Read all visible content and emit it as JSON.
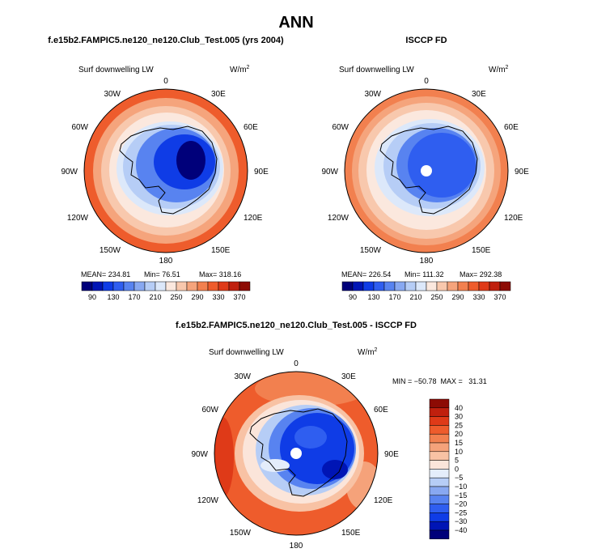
{
  "title": "ANN",
  "colors": {
    "level_colors": [
      "#00007a",
      "#0015b5",
      "#0f3ce6",
      "#2f5ef0",
      "#5883f0",
      "#88a8f1",
      "#b6cdf6",
      "#dce8fa",
      "#fbe8de",
      "#f8c8ad",
      "#f5a47c",
      "#f2804f",
      "#ee5c2c",
      "#df3a18",
      "#c0200e",
      "#8d0b04"
    ],
    "diff_colors": [
      "#00007a",
      "#0015b5",
      "#0f3ce6",
      "#2f5ef0",
      "#5883f0",
      "#88a8f1",
      "#b6cdf6",
      "#e4edfb",
      "#fbe5da",
      "#f8c2a4",
      "#f5a27a",
      "#f2804f",
      "#ee5c2c",
      "#df3a18",
      "#c0200e",
      "#8d0b04"
    ],
    "land_outline": "#000000",
    "pole_hole": "#ffffff"
  },
  "lon_labels": {
    "lon_0": "0",
    "lon_30e": "30E",
    "lon_60e": "60E",
    "lon_90e": "90E",
    "lon_120e": "120E",
    "lon_150e": "150E",
    "lon_180": "180",
    "lon_150w": "150W",
    "lon_120w": "120W",
    "lon_90w": "90W",
    "lon_60w": "60W",
    "lon_30w": "30W"
  },
  "panels": {
    "model": {
      "case_title": "f.e15b2.FAMPIC5.ne120_ne120.Club_Test.005 (yrs 2004)",
      "field_label": "Surf downwelling LW",
      "units": "W/m",
      "units_exp": "2",
      "mean_label": "MEAN= 234.81",
      "min_label": "Min=   76.51",
      "max_label": "Max= 318.16",
      "field_stats": {
        "mean": 234.81,
        "min": 76.51,
        "max": 318.16
      }
    },
    "obs": {
      "case_title": "ISCCP FD",
      "field_label": "Surf downwelling LW",
      "units": "W/m",
      "units_exp": "2",
      "mean_label": "MEAN= 226.54",
      "min_label": "Min= 111.32",
      "max_label": "Max= 292.38",
      "field_stats": {
        "mean": 226.54,
        "min": 111.32,
        "max": 292.38
      }
    },
    "diff": {
      "case_title": "f.e15b2.FAMPIC5.ne120_ne120.Club_Test.005 - ISCCP FD",
      "field_label": "Surf downwelling LW",
      "units": "W/m",
      "units_exp": "2",
      "minmax_label": "MIN = −50.78  MAX =   31.31",
      "field_stats": {
        "min": -50.78,
        "max": 31.31
      }
    }
  },
  "chart_data": [
    {
      "type": "heatmap",
      "title": "f.e15b2.FAMPIC5.ne120_ne120.Club_Test.005 (yrs 2004)",
      "projection": "south polar stereographic",
      "field": "Surf downwelling LW",
      "units": "W/m^2",
      "contour_levels": [
        90,
        110,
        130,
        150,
        170,
        190,
        210,
        230,
        250,
        270,
        290,
        310,
        330,
        350,
        370
      ],
      "colorbar_tick_labels": [
        "90",
        "130",
        "170",
        "210",
        "250",
        "290",
        "330",
        "370"
      ],
      "stats": {
        "mean": 234.81,
        "min": 76.51,
        "max": 318.16
      }
    },
    {
      "type": "heatmap",
      "title": "ISCCP FD",
      "projection": "south polar stereographic",
      "field": "Surf downwelling LW",
      "units": "W/m^2",
      "contour_levels": [
        90,
        110,
        130,
        150,
        170,
        190,
        210,
        230,
        250,
        270,
        290,
        310,
        330,
        350,
        370
      ],
      "colorbar_tick_labels": [
        "90",
        "130",
        "170",
        "210",
        "250",
        "290",
        "330",
        "370"
      ],
      "stats": {
        "mean": 226.54,
        "min": 111.32,
        "max": 292.38
      }
    },
    {
      "type": "heatmap",
      "title": "f.e15b2.FAMPIC5.ne120_ne120.Club_Test.005 - ISCCP FD",
      "projection": "south polar stereographic",
      "field": "Surf downwelling LW",
      "units": "W/m^2",
      "contour_levels": [
        -40,
        -30,
        -25,
        -20,
        -15,
        -10,
        -5,
        0,
        5,
        10,
        15,
        20,
        25,
        30,
        40
      ],
      "colorbar_tick_labels": [
        "40",
        "30",
        "25",
        "20",
        "15",
        "10",
        "5",
        "0",
        "−5",
        "−10",
        "−15",
        "−20",
        "−25",
        "−30",
        "−40"
      ],
      "stats": {
        "min": -50.78,
        "max": 31.31
      }
    }
  ]
}
